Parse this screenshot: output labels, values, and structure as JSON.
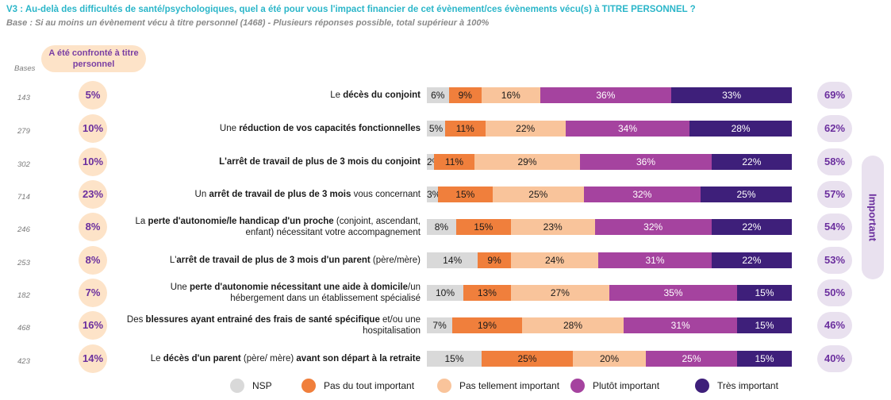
{
  "header": {
    "title": "V3 : Au-delà des difficultés de santé/psychologiques, quel a été pour vous l'impact financier de cet évènement/ces évènements vécu(s) à TITRE PERSONNEL ?",
    "subtitle": "Base : Si au moins un évènement vécu à titre personnel (1468) - Plusieurs réponses possible, total supérieur à 100%",
    "bases_label": "Bases",
    "confronted_label": "A été confronté à titre personnel",
    "important_label": "Important"
  },
  "colors": {
    "NSP": "#d9d9d9",
    "Pas du tout important": "#f07f3c",
    "Pas tellement important": "#f9c49b",
    "Plutôt important": "#a5439f",
    "Très important": "#3e1f7a",
    "accent_text": "#6b2f9e",
    "pill_orange": "#fde3c8",
    "pill_lilac": "#e9e1ef"
  },
  "chart_data": {
    "type": "bar",
    "orientation": "horizontal",
    "stacked": true,
    "x_unit": "%",
    "categories": [
      {
        "parts": [
          {
            "t": "Le "
          },
          {
            "t": "décès du conjoint",
            "b": true
          }
        ]
      },
      {
        "parts": [
          {
            "t": "Une "
          },
          {
            "t": "réduction de vos capacités fonctionnelles",
            "b": true
          }
        ]
      },
      {
        "parts": [
          {
            "t": "L'arrêt de travail de plus de 3 mois du conjoint",
            "b": true
          }
        ]
      },
      {
        "parts": [
          {
            "t": "Un "
          },
          {
            "t": "arrêt de travail de plus de 3 mois",
            "b": true
          },
          {
            "t": " vous concernant"
          }
        ]
      },
      {
        "parts": [
          {
            "t": "La "
          },
          {
            "t": "perte d'autonomie/le handicap d'un proche",
            "b": true
          },
          {
            "t": " (conjoint, ascendant, enfant) nécessitant votre accompagnement"
          }
        ]
      },
      {
        "parts": [
          {
            "t": "L'"
          },
          {
            "t": "arrêt de travail de plus de 3 mois d'un parent",
            "b": true
          },
          {
            "t": " (père/mère)"
          }
        ]
      },
      {
        "parts": [
          {
            "t": "Une "
          },
          {
            "t": "perte d'autonomie nécessitant une aide à domicile",
            "b": true
          },
          {
            "t": "/un hébergement dans un établissement spécialisé"
          }
        ]
      },
      {
        "parts": [
          {
            "t": "Des "
          },
          {
            "t": "blessures ayant entrainé des frais de santé spécifique",
            "b": true
          },
          {
            "t": " et/ou une hospitalisation"
          }
        ]
      },
      {
        "parts": [
          {
            "t": "Le "
          },
          {
            "t": "décès d'un parent",
            "b": true
          },
          {
            "t": " (père/ mère) "
          },
          {
            "t": "avant son départ à la retraite",
            "b": true
          }
        ]
      }
    ],
    "bases": [
      "143",
      "279",
      "302",
      "714",
      "246",
      "253",
      "182",
      "468",
      "423"
    ],
    "confronted": [
      "5%",
      "10%",
      "10%",
      "23%",
      "8%",
      "8%",
      "7%",
      "16%",
      "14%"
    ],
    "important_total": [
      "69%",
      "62%",
      "58%",
      "57%",
      "54%",
      "53%",
      "50%",
      "46%",
      "40%"
    ],
    "series": [
      {
        "name": "NSP",
        "values": [
          6,
          5,
          2,
          3,
          8,
          14,
          10,
          7,
          15
        ]
      },
      {
        "name": "Pas du tout important",
        "values": [
          9,
          11,
          11,
          15,
          15,
          9,
          13,
          19,
          25
        ]
      },
      {
        "name": "Pas tellement important",
        "values": [
          16,
          22,
          29,
          25,
          23,
          24,
          27,
          28,
          20
        ]
      },
      {
        "name": "Plutôt important",
        "values": [
          36,
          34,
          36,
          32,
          32,
          31,
          35,
          31,
          25
        ]
      },
      {
        "name": "Très important",
        "values": [
          33,
          28,
          22,
          25,
          22,
          22,
          15,
          15,
          15
        ]
      }
    ],
    "xlim": [
      0,
      100
    ],
    "legend_position": "bottom"
  }
}
